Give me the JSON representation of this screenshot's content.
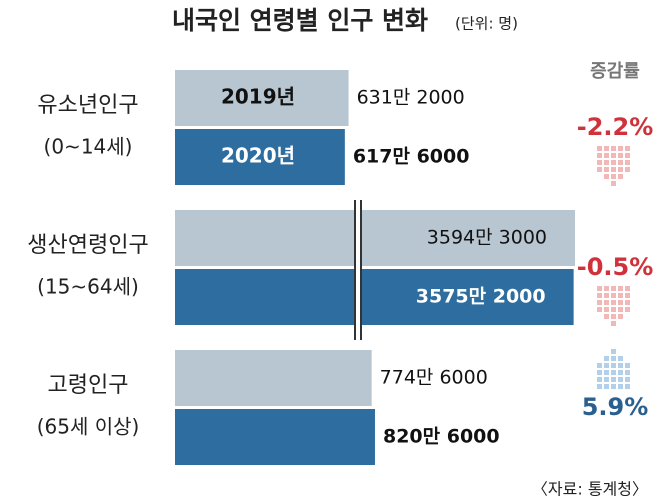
{
  "chart_data": {
    "type": "bar",
    "orientation": "horizontal",
    "title": "내국인 연령별 인구 변화",
    "unit": "(단위: 명)",
    "categories": [
      "유소년인구",
      "생산연령인구",
      "고령인구"
    ],
    "category_ranges": [
      "(0~14세)",
      "(15~64세)",
      "(65세 이상)"
    ],
    "series": [
      {
        "name": "2019년",
        "color": "#b8c6d2",
        "values": [
          6312000,
          35943000,
          7746000
        ],
        "value_labels": [
          "631만 2000",
          "3594만 3000",
          "774만 6000"
        ]
      },
      {
        "name": "2020년",
        "color": "#2d6d9f",
        "values": [
          6176000,
          35752000,
          8206000
        ],
        "value_labels": [
          "617만 6000",
          "3575만 2000",
          "820만 6000"
        ]
      }
    ],
    "change_title": "증감률",
    "changes": [
      -2.2,
      -0.5,
      5.9
    ],
    "change_labels": [
      "-2.2%",
      "-0.5%",
      "5.9%"
    ],
    "change_colors": {
      "down": "#d0323b",
      "up": "#2a5f8f"
    },
    "axis_break": true,
    "source": "〈자료: 통계청〉"
  }
}
